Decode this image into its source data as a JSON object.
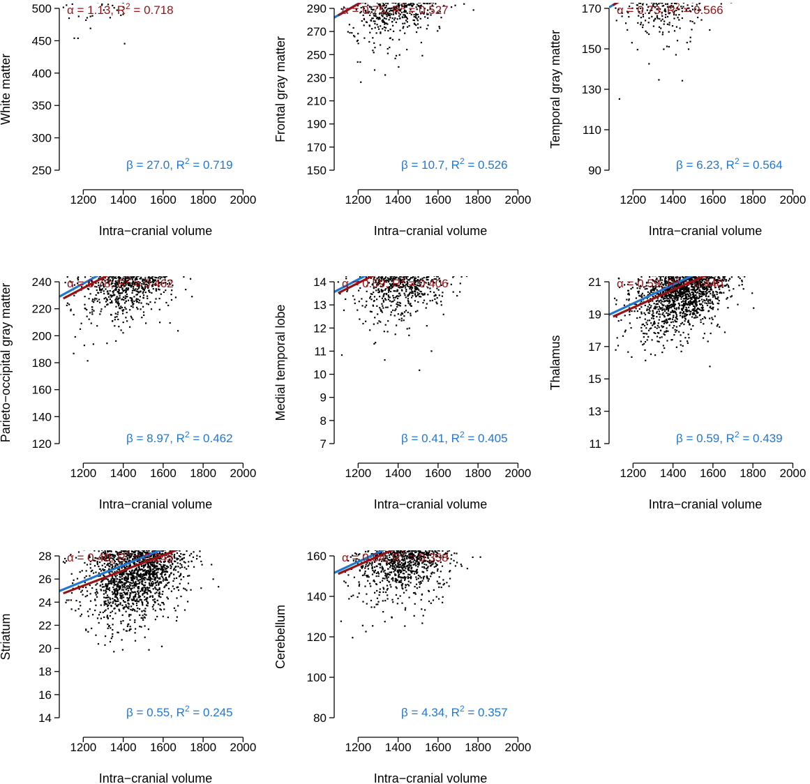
{
  "colors": {
    "alpha_line": "#9b1014",
    "beta_line": "#1f77d4",
    "points": "#000000"
  },
  "chart_data": [
    {
      "type": "scatter",
      "xlabel": "Intra−cranial volume",
      "ylabel": "White matter",
      "xlim": [
        1080,
        2030
      ],
      "ylim": [
        250,
        500
      ],
      "xticks": [
        "1200",
        "1400",
        "1600",
        "1800",
        "2000"
      ],
      "yticks": [
        "250",
        "300",
        "350",
        "400",
        "450",
        "500"
      ],
      "center": [
        1480,
        345
      ],
      "spread": [
        120,
        32
      ],
      "n_points": 2600,
      "alpha_fit": {
        "intercept": 257,
        "slope": 0.242,
        "x_range": [
          1100,
          2000
        ],
        "label": "α = 1.13,  R",
        "r2": " = 0.718",
        "sup": "2"
      },
      "beta_fit": {
        "intercept": 253,
        "slope": 0.246,
        "x_range": [
          1080,
          2030
        ],
        "label": "β = 27.0,  R",
        "r2": " = 0.719",
        "sup": "2"
      }
    },
    {
      "type": "scatter",
      "xlabel": "Intra−cranial volume",
      "ylabel": "Frontal gray matter",
      "xlim": [
        1080,
        2030
      ],
      "ylim": [
        150,
        290
      ],
      "xticks": [
        "1200",
        "1400",
        "1600",
        "1800",
        "2000"
      ],
      "yticks": [
        "150",
        "170",
        "190",
        "210",
        "230",
        "250",
        "270",
        "290"
      ],
      "center": [
        1480,
        210
      ],
      "spread": [
        120,
        20
      ],
      "n_points": 2600,
      "alpha_fit": {
        "intercept": 175,
        "slope": 0.099,
        "x_range": [
          1100,
          2000
        ],
        "label": "α = 0.75,  R",
        "r2": " = 0.527",
        "sup": "2"
      },
      "beta_fit": {
        "intercept": 174,
        "slope": 0.1,
        "x_range": [
          1080,
          2030
        ],
        "label": "β = 10.7,  R",
        "r2": " = 0.526",
        "sup": "2"
      }
    },
    {
      "type": "scatter",
      "xlabel": "Intra−cranial volume",
      "ylabel": "Temporal gray matter",
      "xlim": [
        1080,
        2030
      ],
      "ylim": [
        90,
        170
      ],
      "xticks": [
        "1200",
        "1400",
        "1600",
        "1800",
        "2000"
      ],
      "yticks": [
        "90",
        "110",
        "130",
        "150",
        "170"
      ],
      "center": [
        1480,
        128
      ],
      "spread": [
        120,
        12
      ],
      "n_points": 2600,
      "alpha_fit": {
        "intercept": 105,
        "slope": 0.0605,
        "x_range": [
          1100,
          2000
        ],
        "label": "α = 0.73,  R",
        "r2": " = 0.566",
        "sup": "2"
      },
      "beta_fit": {
        "intercept": 103.5,
        "slope": 0.062,
        "x_range": [
          1080,
          2030
        ],
        "label": "β = 6.23,  R",
        "r2": " = 0.564",
        "sup": "2"
      }
    },
    {
      "type": "scatter",
      "xlabel": "Intra−cranial volume",
      "ylabel": "Parieto−occipital gray matter",
      "xlim": [
        1080,
        2030
      ],
      "ylim": [
        120,
        240
      ],
      "xticks": [
        "1200",
        "1400",
        "1600",
        "1800",
        "2000"
      ],
      "yticks": [
        "120",
        "140",
        "160",
        "180",
        "200",
        "220",
        "240"
      ],
      "center": [
        1480,
        172
      ],
      "spread": [
        120,
        18
      ],
      "n_points": 2600,
      "alpha_fit": {
        "intercept": 142,
        "slope": 0.0778,
        "x_range": [
          1100,
          2000
        ],
        "label": "α = 0.78,  R",
        "r2": " = 0.462",
        "sup": "2"
      },
      "beta_fit": {
        "intercept": 141.5,
        "slope": 0.081,
        "x_range": [
          1080,
          2030
        ],
        "label": "β = 8.97,  R",
        "r2": " = 0.462",
        "sup": "2"
      }
    },
    {
      "type": "scatter",
      "xlabel": "Intra−cranial volume",
      "ylabel": "Medial temporal lobe",
      "xlim": [
        1080,
        2030
      ],
      "ylim": [
        7,
        14
      ],
      "xticks": [
        "1200",
        "1400",
        "1600",
        "1800",
        "2000"
      ],
      "yticks": [
        "7",
        "8",
        "9",
        "10",
        "11",
        "12",
        "13",
        "14"
      ],
      "center": [
        1480,
        10.5
      ],
      "spread": [
        120,
        1.1
      ],
      "n_points": 2600,
      "alpha_fit": {
        "intercept": 8.75,
        "slope": 0.00433,
        "x_range": [
          1100,
          2000
        ],
        "label": "α = 0.59,  R",
        "r2": " = 0.406",
        "sup": "2"
      },
      "beta_fit": {
        "intercept": 8.7,
        "slope": 0.0045,
        "x_range": [
          1080,
          2030
        ],
        "label": "β = 0.41,  R",
        "r2": " = 0.405",
        "sup": "2"
      }
    },
    {
      "type": "scatter",
      "xlabel": "Intra−cranial volume",
      "ylabel": "Thalamus",
      "xlim": [
        1080,
        2030
      ],
      "ylim": [
        11,
        21
      ],
      "xticks": [
        "1200",
        "1400",
        "1600",
        "1800",
        "2000"
      ],
      "yticks": [
        "11",
        "13",
        "15",
        "17",
        "19",
        "21"
      ],
      "center": [
        1480,
        15
      ],
      "spread": [
        120,
        1.4
      ],
      "n_points": 2600,
      "alpha_fit": {
        "intercept": 12.8,
        "slope": 0.0055,
        "x_range": [
          1100,
          2000
        ],
        "label": "α = 0.59,  R",
        "r2": " = 0.440",
        "sup": "2"
      },
      "beta_fit": {
        "intercept": 12.7,
        "slope": 0.0058,
        "x_range": [
          1080,
          2030
        ],
        "label": "β = 0.59,  R",
        "r2": " = 0.439",
        "sup": "2"
      }
    },
    {
      "type": "scatter",
      "xlabel": "Intra−cranial volume",
      "ylabel": "Striatum",
      "xlim": [
        1080,
        2030
      ],
      "ylim": [
        14,
        28
      ],
      "xticks": [
        "1200",
        "1400",
        "1600",
        "1800",
        "2000"
      ],
      "yticks": [
        "14",
        "16",
        "18",
        "20",
        "22",
        "24",
        "26",
        "28"
      ],
      "center": [
        1480,
        20
      ],
      "spread": [
        120,
        2.3
      ],
      "n_points": 2600,
      "alpha_fit": {
        "intercept": 17.5,
        "slope": 0.0066,
        "x_range": [
          1100,
          2000
        ],
        "label": "α = 0.40,  R",
        "r2": " = 0.245",
        "sup": "2"
      },
      "beta_fit": {
        "intercept": 17.4,
        "slope": 0.007,
        "x_range": [
          1080,
          2030
        ],
        "label": "β = 0.55,  R",
        "r2": " = 0.245",
        "sup": "2"
      }
    },
    {
      "type": "scatter",
      "xlabel": "Intra−cranial volume",
      "ylabel": "Cerebellum",
      "xlim": [
        1080,
        2030
      ],
      "ylim": [
        80,
        160
      ],
      "xticks": [
        "1200",
        "1400",
        "1600",
        "1800",
        "2000"
      ],
      "yticks": [
        "80",
        "100",
        "120",
        "140",
        "160"
      ],
      "center": [
        1480,
        120
      ],
      "spread": [
        120,
        12
      ],
      "n_points": 2600,
      "alpha_fit": {
        "intercept": 103.5,
        "slope": 0.0433,
        "x_range": [
          1100,
          2000
        ],
        "label": "α = 0.54,  R",
        "r2": " = 0.358",
        "sup": "2"
      },
      "beta_fit": {
        "intercept": 102.5,
        "slope": 0.0455,
        "x_range": [
          1080,
          2030
        ],
        "label": "β = 4.34,  R",
        "r2": " = 0.357",
        "sup": "2"
      }
    }
  ]
}
